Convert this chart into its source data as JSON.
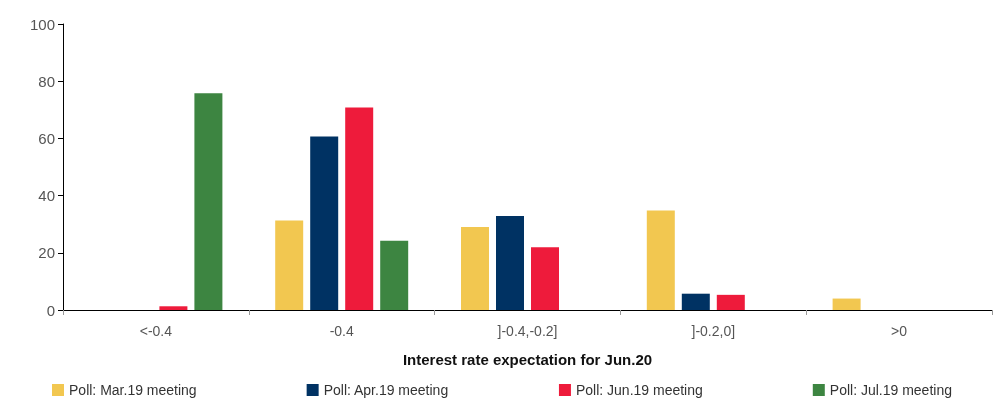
{
  "chart_data": {
    "type": "bar",
    "xlabel": "Interest rate expectation for Jun.20",
    "categories": [
      "<-0.4",
      "-0.4",
      "]-0.4,-0.2]",
      "]-0.2,0]",
      ">0"
    ],
    "series": [
      {
        "name": "Poll: Mar.19 meeting",
        "color": "#f2c750",
        "values": [
          0,
          31.3,
          29,
          34.8,
          4
        ]
      },
      {
        "name": "Poll: Apr.19 meeting",
        "color": "#003263",
        "values": [
          0,
          60.7,
          32.9,
          5.7,
          0
        ]
      },
      {
        "name": "Poll: Jun.19 meeting",
        "color": "#ee1b3b",
        "values": [
          1.3,
          70.8,
          21.9,
          5.3,
          0
        ]
      },
      {
        "name": "Poll: Jul.19 meeting",
        "color": "#3d8541",
        "values": [
          75.8,
          24.2,
          0,
          0,
          0
        ]
      }
    ],
    "ylim": [
      0,
      100
    ],
    "yticks": [
      0,
      20,
      40,
      60,
      80,
      100
    ],
    "grid": false,
    "legend": "bottom"
  }
}
